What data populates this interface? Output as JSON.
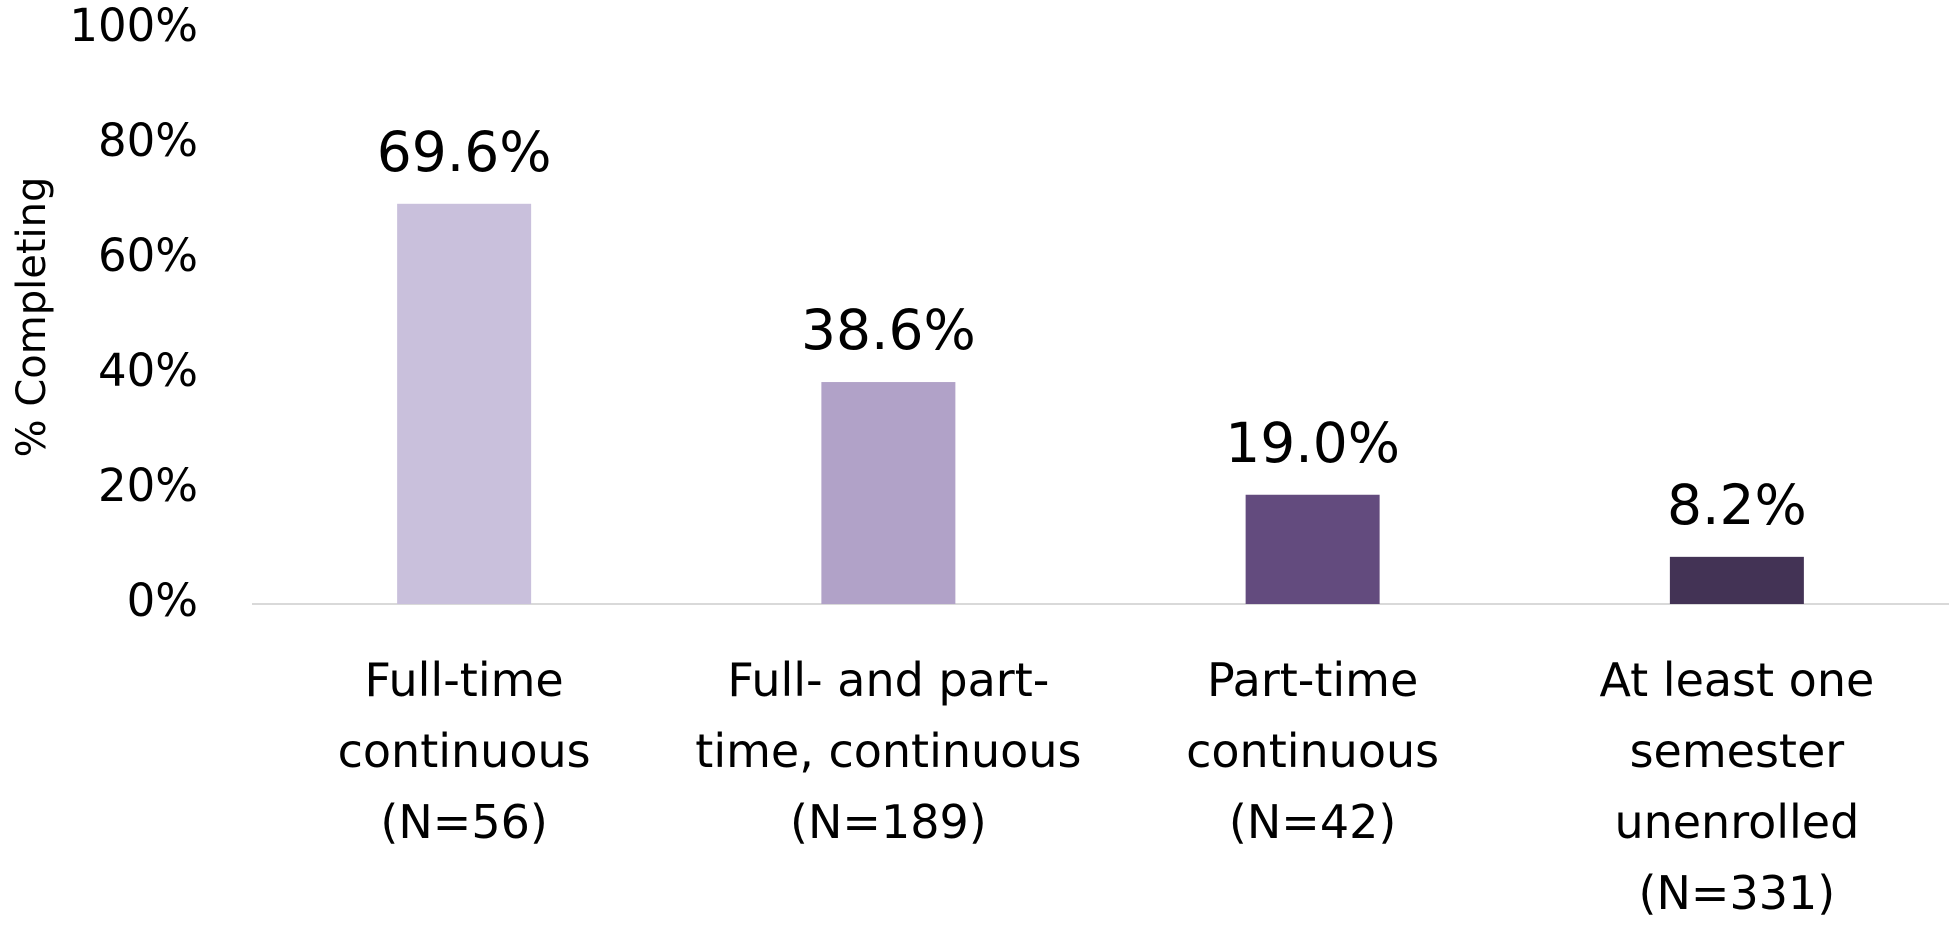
{
  "chart_data": {
    "type": "bar",
    "y_label": "% Completing",
    "categories": [
      "Full-time\ncontinuous\n(N=56)",
      "Full- and part-\ntime, continuous\n(N=189)",
      "Part-time\ncontinuous\n(N=42)",
      "At least one\nsemester\nunenrolled\n(N=331)"
    ],
    "values": [
      69.6,
      38.6,
      19.0,
      8.2
    ],
    "value_labels": [
      "69.6%",
      "38.6%",
      "19.0%",
      "8.2%"
    ],
    "colors": [
      "#c9c0dc",
      "#b1a2c8",
      "#634b7e",
      "#433355"
    ],
    "ylim": [
      0,
      100
    ],
    "yticks": [
      {
        "value": 0,
        "label": "0%"
      },
      {
        "value": 20,
        "label": "20%"
      },
      {
        "value": 40,
        "label": "40%"
      },
      {
        "value": 60,
        "label": "60%"
      },
      {
        "value": 80,
        "label": "80%"
      },
      {
        "value": 100,
        "label": "100%"
      }
    ],
    "grid": false
  }
}
